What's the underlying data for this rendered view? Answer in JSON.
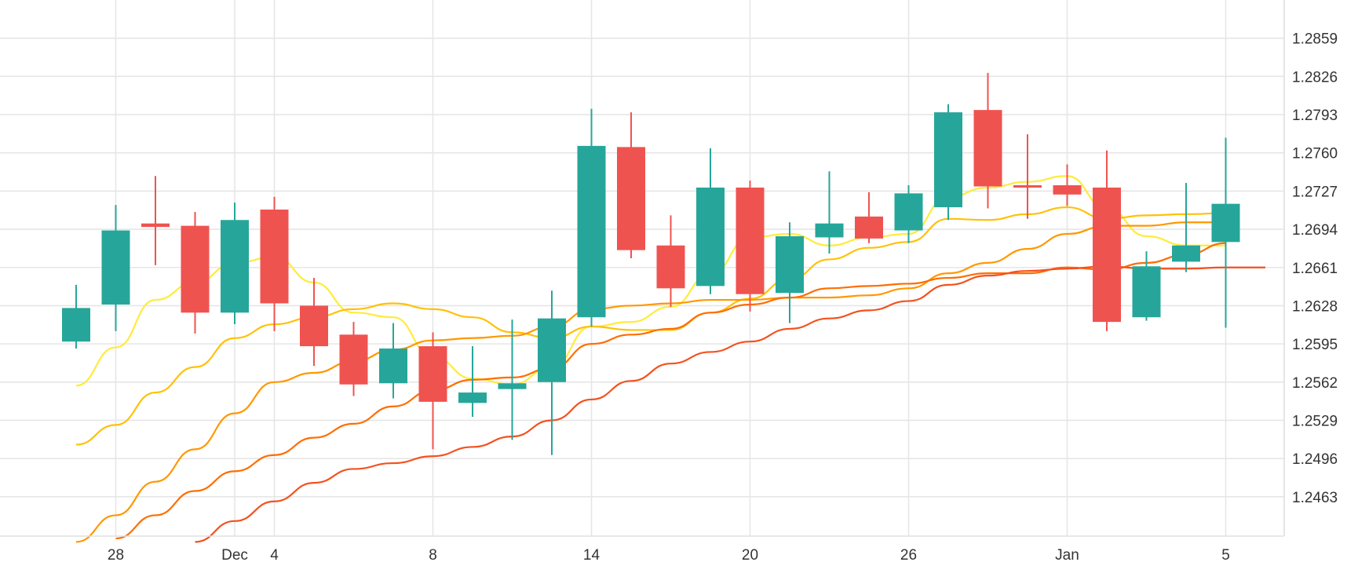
{
  "chart_data": {
    "type": "candlestick",
    "title": "",
    "xlabel": "",
    "ylabel": "",
    "x_tick_labels": [
      {
        "label": "28",
        "index": 1
      },
      {
        "label": "Dec",
        "index": 4
      },
      {
        "label": "4",
        "index": 5
      },
      {
        "label": "8",
        "index": 9
      },
      {
        "label": "14",
        "index": 13
      },
      {
        "label": "20",
        "index": 17
      },
      {
        "label": "26",
        "index": 21
      },
      {
        "label": "Jan",
        "index": 25
      },
      {
        "label": "5",
        "index": 29
      }
    ],
    "y_ticks": [
      "1.2463",
      "1.2496",
      "1.2529",
      "1.2562",
      "1.2595",
      "1.2628",
      "1.2661",
      "1.2694",
      "1.2727",
      "1.2760",
      "1.2793",
      "1.2826",
      "1.2859"
    ],
    "ylim": [
      1.2429,
      1.2892
    ],
    "grid": true,
    "up_color": "#26a69a",
    "down_color": "#ef5350",
    "candles": [
      {
        "open": 1.2597,
        "high": 1.2646,
        "low": 1.2591,
        "close": 1.2626
      },
      {
        "open": 1.2629,
        "high": 1.2715,
        "low": 1.2606,
        "close": 1.2693
      },
      {
        "open": 1.2699,
        "high": 1.274,
        "low": 1.2663,
        "close": 1.2696
      },
      {
        "open": 1.2697,
        "high": 1.2709,
        "low": 1.2604,
        "close": 1.2622
      },
      {
        "open": 1.2622,
        "high": 1.2717,
        "low": 1.2612,
        "close": 1.2702
      },
      {
        "open": 1.2711,
        "high": 1.2722,
        "low": 1.2606,
        "close": 1.263
      },
      {
        "open": 1.2628,
        "high": 1.2652,
        "low": 1.2576,
        "close": 1.2593
      },
      {
        "open": 1.2603,
        "high": 1.2614,
        "low": 1.255,
        "close": 1.256
      },
      {
        "open": 1.2561,
        "high": 1.2613,
        "low": 1.2548,
        "close": 1.2591
      },
      {
        "open": 1.2593,
        "high": 1.2605,
        "low": 1.2504,
        "close": 1.2545
      },
      {
        "open": 1.2544,
        "high": 1.2593,
        "low": 1.2532,
        "close": 1.2553
      },
      {
        "open": 1.2556,
        "high": 1.2616,
        "low": 1.2512,
        "close": 1.2561
      },
      {
        "open": 1.2562,
        "high": 1.2641,
        "low": 1.2499,
        "close": 1.2617
      },
      {
        "open": 1.2618,
        "high": 1.2798,
        "low": 1.261,
        "close": 1.2766
      },
      {
        "open": 1.2765,
        "high": 1.2795,
        "low": 1.2669,
        "close": 1.2676
      },
      {
        "open": 1.268,
        "high": 1.2706,
        "low": 1.2627,
        "close": 1.2643
      },
      {
        "open": 1.2645,
        "high": 1.2764,
        "low": 1.2638,
        "close": 1.273
      },
      {
        "open": 1.273,
        "high": 1.2736,
        "low": 1.2623,
        "close": 1.2638
      },
      {
        "open": 1.2639,
        "high": 1.27,
        "low": 1.2613,
        "close": 1.2688
      },
      {
        "open": 1.2687,
        "high": 1.2744,
        "low": 1.2673,
        "close": 1.2699
      },
      {
        "open": 1.2705,
        "high": 1.2726,
        "low": 1.2682,
        "close": 1.2686
      },
      {
        "open": 1.2693,
        "high": 1.2732,
        "low": 1.2682,
        "close": 1.2725
      },
      {
        "open": 1.2713,
        "high": 1.2802,
        "low": 1.2702,
        "close": 1.2795
      },
      {
        "open": 1.2797,
        "high": 1.2829,
        "low": 1.2712,
        "close": 1.2731
      },
      {
        "open": 1.2732,
        "high": 1.2776,
        "low": 1.2703,
        "close": 1.273
      },
      {
        "open": 1.2732,
        "high": 1.275,
        "low": 1.2714,
        "close": 1.2724
      },
      {
        "open": 1.273,
        "high": 1.2762,
        "low": 1.2606,
        "close": 1.2614
      },
      {
        "open": 1.2618,
        "high": 1.2675,
        "low": 1.2615,
        "close": 1.2662
      },
      {
        "open": 1.2666,
        "high": 1.2734,
        "low": 1.2657,
        "close": 1.268
      },
      {
        "open": 1.2683,
        "high": 1.2773,
        "low": 1.2609,
        "close": 1.2716
      }
    ],
    "moving_averages": [
      {
        "color": "#ffeb3b",
        "start_index": 0,
        "values": [
          1.2559,
          1.2592,
          1.2633,
          1.2648,
          1.2665,
          1.267,
          1.2648,
          1.2622,
          1.2618,
          1.2584,
          1.2565,
          1.256,
          1.2575,
          1.261,
          1.2614,
          1.2627,
          1.2655,
          1.2687,
          1.269,
          1.268,
          1.2687,
          1.269,
          1.2722,
          1.273,
          1.2735,
          1.274,
          1.2712,
          1.2688,
          1.268,
          1.268
        ]
      },
      {
        "color": "#ffc107",
        "start_index": 0,
        "values": [
          1.2508,
          1.2525,
          1.2553,
          1.2575,
          1.26,
          1.2612,
          1.2618,
          1.2625,
          1.263,
          1.2625,
          1.2618,
          1.2605,
          1.26,
          1.261,
          1.2607,
          1.2607,
          1.2622,
          1.2634,
          1.2651,
          1.2668,
          1.2678,
          1.2683,
          1.2703,
          1.2702,
          1.2707,
          1.2713,
          1.2703,
          1.2706,
          1.2707,
          1.2708
        ]
      },
      {
        "color": "#ff9800",
        "start_index": 0,
        "values": [
          1.2424,
          1.2447,
          1.2476,
          1.2504,
          1.2535,
          1.2562,
          1.257,
          1.258,
          1.259,
          1.2598,
          1.26,
          1.2602,
          1.261,
          1.2625,
          1.2628,
          1.263,
          1.2633,
          1.2633,
          1.2635,
          1.2635,
          1.2637,
          1.2643,
          1.2656,
          1.2665,
          1.2677,
          1.269,
          1.2697,
          1.2697,
          1.27,
          1.27
        ]
      },
      {
        "color": "#ff6d00",
        "start_index": 1,
        "values": [
          1.2427,
          1.2447,
          1.2468,
          1.2485,
          1.2499,
          1.2514,
          1.2526,
          1.2541,
          1.2555,
          1.2564,
          1.2566,
          1.2574,
          1.2595,
          1.2603,
          1.2608,
          1.2622,
          1.2629,
          1.2635,
          1.2643,
          1.2645,
          1.2647,
          1.2652,
          1.2656,
          1.2656,
          1.2661,
          1.2659,
          1.2665,
          1.2672,
          1.2682
        ]
      },
      {
        "color": "#f4511e",
        "start_index": 3,
        "values": [
          1.2424,
          1.2442,
          1.2459,
          1.2475,
          1.2487,
          1.2492,
          1.2498,
          1.2506,
          1.2515,
          1.2529,
          1.2547,
          1.2563,
          1.2578,
          1.2588,
          1.2597,
          1.2608,
          1.2617,
          1.2624,
          1.2632,
          1.2646,
          1.2654,
          1.2658,
          1.266,
          1.2662,
          1.266,
          1.266,
          1.2661,
          1.2661
        ]
      }
    ]
  }
}
